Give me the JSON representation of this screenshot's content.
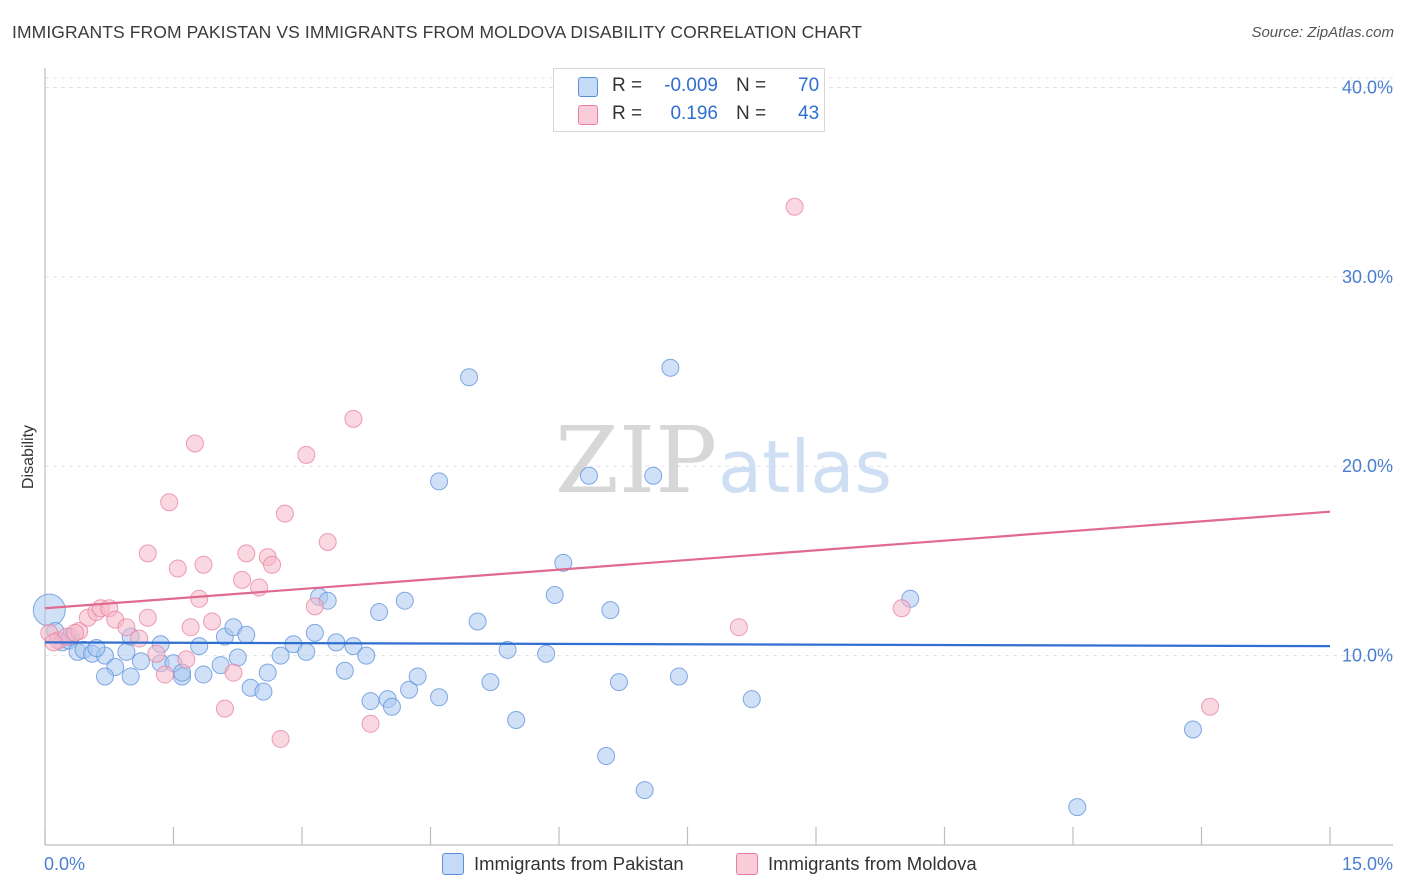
{
  "title": "IMMIGRANTS FROM PAKISTAN VS IMMIGRANTS FROM MOLDOVA DISABILITY CORRELATION CHART",
  "source": "Source: ZipAtlas.com",
  "watermark": {
    "zip": "ZIP",
    "atlas": "atlas"
  },
  "legend": {
    "r_label": "R =",
    "n_label": "N =",
    "rows": [
      {
        "r": "-0.009",
        "n": "70",
        "color": "#a9c8f0"
      },
      {
        "r": "0.196",
        "n": "43",
        "color": "#f5b8c9"
      }
    ]
  },
  "bottom_legend": [
    "Immigrants from Pakistan",
    "Immigrants from Moldova"
  ],
  "chart_data": {
    "type": "scatter",
    "title": "IMMIGRANTS FROM PAKISTAN VS IMMIGRANTS FROM MOLDOVA DISABILITY CORRELATION CHART",
    "xlabel": "",
    "ylabel": "Disability",
    "xlim": [
      0,
      15
    ],
    "ylim": [
      0,
      40.5
    ],
    "x_tick_labels": [
      "0.0%",
      "15.0%"
    ],
    "y_ticks": [
      10,
      20,
      30,
      40
    ],
    "y_tick_labels": [
      "10.0%",
      "20.0%",
      "30.0%",
      "40.0%"
    ],
    "grid": true,
    "legend_position": "top-center",
    "colors": {
      "pakistan": "#5b8fd9",
      "pakistan_fill": "#a9c8f0",
      "moldova": "#e87fa0",
      "moldova_fill": "#f5b8c9",
      "pakistan_line": "#2f6fd0",
      "moldova_line": "#e06a90"
    },
    "series": [
      {
        "name": "Immigrants from Pakistan",
        "trend": {
          "y_at_0": 10.7,
          "y_at_15": 10.5
        },
        "points": [
          [
            0.05,
            12.4
          ],
          [
            0.12,
            11.3
          ],
          [
            0.2,
            10.7
          ],
          [
            0.28,
            10.8
          ],
          [
            0.38,
            10.2
          ],
          [
            0.45,
            10.3
          ],
          [
            0.55,
            10.1
          ],
          [
            0.7,
            10.0
          ],
          [
            0.82,
            9.4
          ],
          [
            1.12,
            9.7
          ],
          [
            1.35,
            9.6
          ],
          [
            1.6,
            8.9
          ],
          [
            1.85,
            9.0
          ],
          [
            0.7,
            8.9
          ],
          [
            1.0,
            8.9
          ],
          [
            2.05,
            9.5
          ],
          [
            2.25,
            9.9
          ],
          [
            2.4,
            8.3
          ],
          [
            2.55,
            8.1
          ],
          [
            2.6,
            9.1
          ],
          [
            1.5,
            9.6
          ],
          [
            0.95,
            10.2
          ],
          [
            1.35,
            10.6
          ],
          [
            1.8,
            10.5
          ],
          [
            2.1,
            11.0
          ],
          [
            2.2,
            11.5
          ],
          [
            2.35,
            11.1
          ],
          [
            2.75,
            10.0
          ],
          [
            2.9,
            10.6
          ],
          [
            3.05,
            10.2
          ],
          [
            3.15,
            11.2
          ],
          [
            3.2,
            13.1
          ],
          [
            3.3,
            12.9
          ],
          [
            3.4,
            10.7
          ],
          [
            3.5,
            9.2
          ],
          [
            3.6,
            10.5
          ],
          [
            3.75,
            10.0
          ],
          [
            3.8,
            7.6
          ],
          [
            4.0,
            7.7
          ],
          [
            4.05,
            7.3
          ],
          [
            3.9,
            12.3
          ],
          [
            4.2,
            12.9
          ],
          [
            4.25,
            8.2
          ],
          [
            4.35,
            8.9
          ],
          [
            4.6,
            19.2
          ],
          [
            4.6,
            7.8
          ],
          [
            4.95,
            24.7
          ],
          [
            5.05,
            11.8
          ],
          [
            5.2,
            8.6
          ],
          [
            5.4,
            10.3
          ],
          [
            5.5,
            6.6
          ],
          [
            5.85,
            10.1
          ],
          [
            5.95,
            13.2
          ],
          [
            6.05,
            14.9
          ],
          [
            6.35,
            19.5
          ],
          [
            6.55,
            4.7
          ],
          [
            6.6,
            12.4
          ],
          [
            6.7,
            8.6
          ],
          [
            7.0,
            2.9
          ],
          [
            7.1,
            19.5
          ],
          [
            7.3,
            25.2
          ],
          [
            7.4,
            8.9
          ],
          [
            8.25,
            7.7
          ],
          [
            10.1,
            13.0
          ],
          [
            12.05,
            2.0
          ],
          [
            13.4,
            6.1
          ],
          [
            0.3,
            11.0
          ],
          [
            0.6,
            10.4
          ],
          [
            1.0,
            11.0
          ],
          [
            1.6,
            9.1
          ]
        ]
      },
      {
        "name": "Immigrants from Moldova",
        "trend": {
          "y_at_0": 12.5,
          "y_at_15": 17.6
        },
        "points": [
          [
            0.05,
            11.2
          ],
          [
            0.15,
            10.8
          ],
          [
            0.25,
            11.0
          ],
          [
            0.4,
            11.3
          ],
          [
            0.5,
            12.0
          ],
          [
            0.6,
            12.3
          ],
          [
            0.65,
            12.5
          ],
          [
            0.75,
            12.5
          ],
          [
            0.82,
            11.9
          ],
          [
            0.95,
            11.5
          ],
          [
            1.1,
            10.9
          ],
          [
            1.2,
            12.0
          ],
          [
            1.3,
            10.1
          ],
          [
            1.4,
            9.0
          ],
          [
            1.2,
            15.4
          ],
          [
            1.45,
            18.1
          ],
          [
            1.55,
            14.6
          ],
          [
            1.65,
            9.8
          ],
          [
            1.7,
            11.5
          ],
          [
            1.75,
            21.2
          ],
          [
            1.8,
            13.0
          ],
          [
            1.85,
            14.8
          ],
          [
            1.95,
            11.8
          ],
          [
            2.1,
            7.2
          ],
          [
            2.2,
            9.1
          ],
          [
            2.3,
            14.0
          ],
          [
            2.35,
            15.4
          ],
          [
            2.5,
            13.6
          ],
          [
            2.6,
            15.2
          ],
          [
            2.65,
            14.8
          ],
          [
            2.75,
            5.6
          ],
          [
            2.8,
            17.5
          ],
          [
            3.05,
            20.6
          ],
          [
            3.15,
            12.6
          ],
          [
            3.3,
            16.0
          ],
          [
            3.6,
            22.5
          ],
          [
            3.8,
            6.4
          ],
          [
            8.75,
            33.7
          ],
          [
            10.0,
            12.5
          ],
          [
            8.1,
            11.5
          ],
          [
            13.6,
            7.3
          ],
          [
            0.1,
            10.7
          ],
          [
            0.35,
            11.2
          ]
        ]
      }
    ]
  }
}
